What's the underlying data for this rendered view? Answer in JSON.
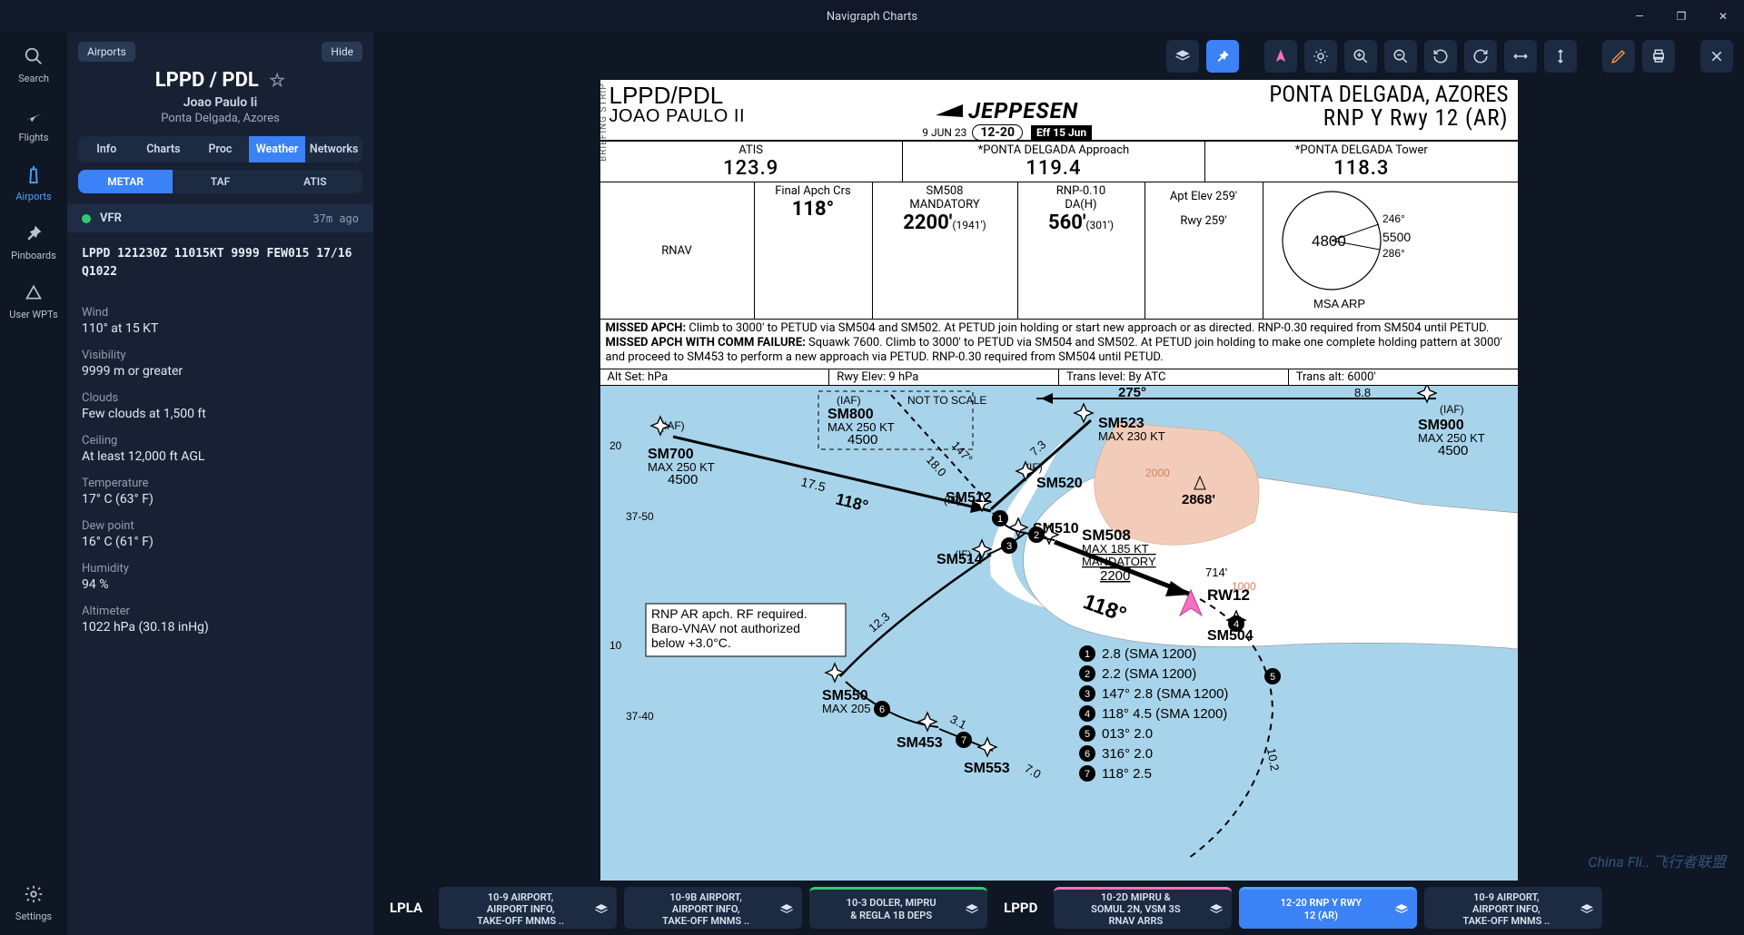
{
  "title": "Navigraph Charts",
  "nav": {
    "search": "Search",
    "flights": "Flights",
    "airports": "Airports",
    "pinboards": "Pinboards",
    "userwpts": "User WPTs",
    "settings": "Settings"
  },
  "panel": {
    "back": "Airports",
    "hide": "Hide",
    "icao_iata": "LPPD / PDL",
    "name": "Joao Paulo Ii",
    "loc": "Ponta Delgada, Azores",
    "tabs": {
      "info": "Info",
      "charts": "Charts",
      "proc": "Proc",
      "weather": "Weather",
      "networks": "Networks"
    },
    "subtabs": {
      "metar": "METAR",
      "taf": "TAF",
      "atis": "ATIS"
    },
    "vfr": "VFR",
    "age": "37m ago",
    "raw": "LPPD 121230Z 11015KT 9999 FEW015 17/16 Q1022",
    "kv": [
      {
        "k": "Wind",
        "v": "110° at 15 KT"
      },
      {
        "k": "Visibility",
        "v": "9999 m or greater"
      },
      {
        "k": "Clouds",
        "v": "Few clouds at 1,500 ft"
      },
      {
        "k": "Ceiling",
        "v": "At least 12,000 ft AGL"
      },
      {
        "k": "Temperature",
        "v": "17° C (63° F)"
      },
      {
        "k": "Dew point",
        "v": "16° C (61° F)"
      },
      {
        "k": "Humidity",
        "v": "94 %"
      },
      {
        "k": "Altimeter",
        "v": "1022 hPa (30.18 inHg)"
      }
    ]
  },
  "chart": {
    "airport_line1": "LPPD/PDL",
    "airport_line2": "JOAO PAULO II",
    "provider": "JEPPESEN",
    "date": "9 JUN 23",
    "index": "12-20",
    "eff": "Eff 15 Jun",
    "city": "PONTA DELGADA, AZORES",
    "proc": "RNP Y Rwy 12 (AR)",
    "freq": {
      "atis_l": "ATIS",
      "atis_v": "123.9",
      "app_l": "*PONTA DELGADA Approach",
      "app_v": "119.4",
      "twr_l": "*PONTA DELGADA Tower",
      "twr_v": "118.3"
    },
    "brief": {
      "rnav": "RNAV",
      "final_l": "Final Apch Crs",
      "final_v": "118°",
      "sm508_l1": "SM508",
      "sm508_l2": "MANDATORY",
      "sm508_v": "2200'",
      "sm508_p": "(1941')",
      "da_l1": "RNP-0.10",
      "da_l2": "DA(H)",
      "da_v": "560'",
      "da_p": "(301')",
      "elev_l": "Apt Elev 259'",
      "rwy_l": "Rwy 259'",
      "msa_label": "MSA ARP",
      "msa_alt": "4800",
      "msa_d1": "246°",
      "msa_d2": "5500",
      "msa_d3": "286°"
    },
    "notes1_b": "MISSED APCH:",
    "notes1": " Climb to 3000' to PETUD via SM504 and SM502. At PETUD join holding or start new approach or as directed. RNP-0.30 required from SM504 until PETUD.",
    "notes2_b": "MISSED APCH WITH COMM FAILURE:",
    "notes2": " Squawk 7600. Climb to 3000' to PETUD via SM504 and SM502. At PETUD join holding to make one complete holding pattern at 3000' and proceed to SM453 to perform a new approach via PETUD. RNP-0.30 required from SM504 until PETUD.",
    "row5": {
      "alt": "Alt Set: hPa",
      "rwy": "Rwy Elev: 9 hPa",
      "trl": "Trans level: By ATC",
      "tra": "Trans alt: 6000'"
    },
    "plan": {
      "water": "#a8d4eb",
      "land1": "#ffffff",
      "terrain": "#f2ccb9",
      "nts": "NOT TO SCALE",
      "note_box": "RNP AR apch. RF required.\nBaro-VNAV not authorized\nbelow +3.0°C.",
      "labels": {
        "sm700": "SM700",
        "sm700_a": "MAX 250 KT",
        "sm700_b": "4500",
        "sm800": "SM800",
        "sm800_a": "MAX 250 KT",
        "sm800_b": "4500",
        "sm900": "SM900",
        "sm900_a": "MAX 250 KT",
        "sm900_b": "4500",
        "sm523": "SM523",
        "sm523_a": "MAX 230 KT",
        "sm520": "SM520",
        "sm512": "SM512",
        "sm510": "SM510",
        "sm514": "SM514",
        "sm508": "SM508",
        "sm508_a": "MAX 185 KT",
        "sm508_b": "MANDATORY",
        "sm508_c": "2200",
        "sm504": "SM504",
        "sm550": "SM550",
        "sm550_a": "MAX 205 KT",
        "sm453": "SM453",
        "sm553": "SM553",
        "rw12": "RW12",
        "iaf": "(IAF)",
        "if": "(IF)",
        "crs118": "118°",
        "crs118b": "118°",
        "r275": "275°",
        "r88": "8.8",
        "d175": "17.5",
        "d147": "147°",
        "d180": "18.0",
        "d73": "7.3",
        "d123": "12.3",
        "d31": "3.1",
        "d70": "7.0",
        "d102": "10.2",
        "peak": "2868'",
        "el714": "714'",
        "el1000": "1000",
        "el2000": "2000",
        "lat20": "20",
        "lat10": "10",
        "lon3750": "37-50",
        "lon3740": "37-40"
      },
      "legend": [
        {
          "n": "1",
          "t": "2.8 (SMA 1200)"
        },
        {
          "n": "2",
          "t": "2.2 (SMA 1200)"
        },
        {
          "n": "3",
          "t": "147° 2.8 (SMA 1200)"
        },
        {
          "n": "4",
          "t": "118° 4.5 (SMA 1200)"
        },
        {
          "n": "5",
          "t": "013° 2.0"
        },
        {
          "n": "6",
          "t": "316° 2.0"
        },
        {
          "n": "7",
          "t": "118° 2.5"
        }
      ]
    }
  },
  "chartbar": {
    "lpla": "LPLA",
    "lppd": "LPPD",
    "items": [
      {
        "l1": "10-9 AIRPORT,",
        "l2": "AIRPORT INFO,",
        "l3": "TAKE-OFF MNMS .."
      },
      {
        "l1": "10-9B AIRPORT,",
        "l2": "AIRPORT INFO,",
        "l3": "TAKE-OFF MNMS .."
      },
      {
        "l1": "10-3 DOLER, MIPRU",
        "l2": "& REGLA 1B DEPS",
        "l3": ""
      },
      {
        "l1": "10-2D MIPRU &",
        "l2": "SOMUL 2N, VSM 3S",
        "l3": "RNAV ARRS"
      },
      {
        "l1": "12-20 RNP Y RWY",
        "l2": "12 (AR)",
        "l3": ""
      },
      {
        "l1": "10-9 AIRPORT,",
        "l2": "AIRPORT INFO,",
        "l3": "TAKE-OFF MNMS .."
      }
    ]
  },
  "watermark": "China Fli.. 飞行者联盟"
}
